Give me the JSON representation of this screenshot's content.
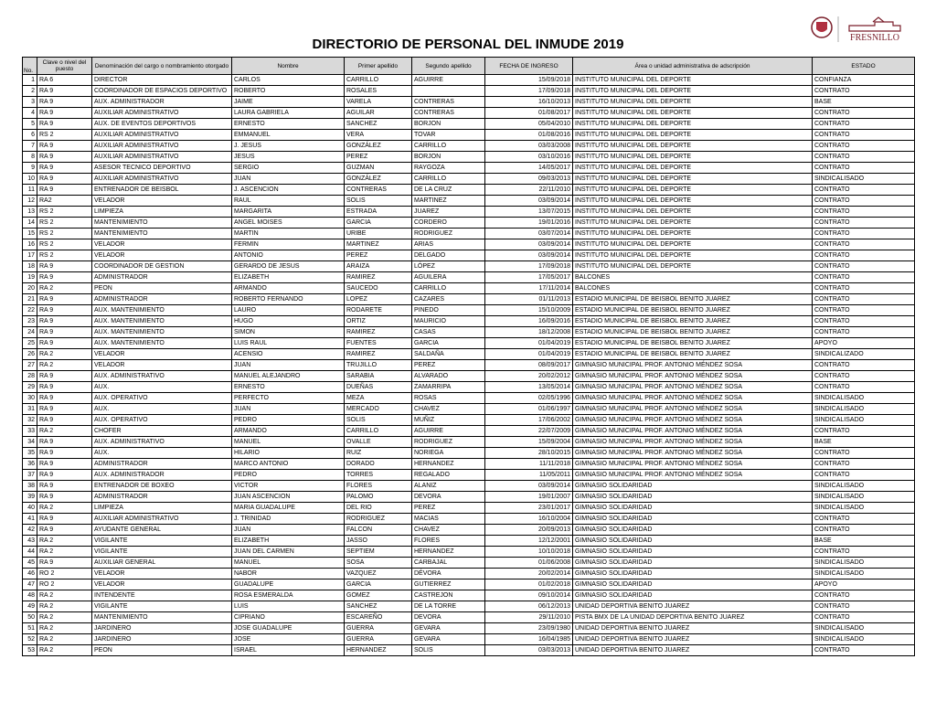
{
  "header": {
    "title": "DIRECTORIO DE PERSONAL DEL INMUDE 2019",
    "logo_text": "FRESNILLO"
  },
  "table": {
    "columns": [
      "No.",
      "Clave o nivel del puesto",
      "Denominación del cargo o nombramiento otorgado",
      "Nombre",
      "Primer apellido",
      "Segundo apellido",
      "FECHA DE INGRESO",
      "Área o unidad administrativa de adscripción",
      "ESTADO"
    ],
    "rows": [
      [
        1,
        "RA 6",
        "DIRECTOR",
        "CARLOS",
        "CARRILLO",
        "AGUIRRE",
        "15/09/2018",
        "INSTITUTO MUNICIPAL DEL DEPORTE",
        "CONFIANZA"
      ],
      [
        2,
        "RA 9",
        "COORDINADOR DE ESPACIOS DEPORTIVO",
        "ROBERTO",
        "ROSALES",
        null,
        "17/09/2018",
        "INSTITUTO MUNICIPAL DEL DEPORTE",
        "CONTRATO"
      ],
      [
        3,
        "RA 9",
        "AUX. ADMINISTRADOR",
        "JAIME",
        "VARELA",
        "CONTRERAS",
        "16/10/2013",
        "INSTITUTO MUNICIPAL DEL DEPORTE",
        "BASE"
      ],
      [
        4,
        "RA 9",
        "AUXILIAR ADMINISTRATIVO",
        "LAURA GABRIELA",
        "AGUILAR",
        "CONTRERAS",
        "01/08/2017",
        "INSTITUTO MUNICIPAL DEL DEPORTE",
        "CONTRATO"
      ],
      [
        5,
        "RA 9",
        "AUX. DE EVENTOS DEPORTIVOS",
        "ERNESTO",
        "SANCHEZ",
        "BORJON",
        "05/04/2010",
        "INSTITUTO MUNICIPAL DEL DEPORTE",
        "CONTRATO"
      ],
      [
        6,
        "RS 2",
        "AUXILIAR ADMINISTRATIVO",
        "EMMANUEL",
        "VERA",
        "TOVAR",
        "01/08/2016",
        "INSTITUTO MUNICIPAL DEL DEPORTE",
        "CONTRATO"
      ],
      [
        7,
        "RA 9",
        "AUXILIAR ADMINISTRATIVO",
        "J. JESUS",
        "GONZÁLEZ",
        "CARRILLO",
        "03/03/2008",
        "INSTITUTO MUNICIPAL DEL DEPORTE",
        "CONTRATO"
      ],
      [
        8,
        "RA 9",
        "AUXILIAR ADMINISTRATIVO",
        "JESUS",
        "PEREZ",
        "BORJON",
        "03/10/2016",
        "INSTITUTO MUNICIPAL DEL DEPORTE",
        "CONTRATO"
      ],
      [
        9,
        "RA 9",
        "ASESOR TECNICO DEPORTIVO",
        "SERGIO",
        "GUZMAN",
        "RAYGOZA",
        "14/05/2017",
        "INSTITUTO MUNICIPAL DEL DEPORTE",
        "CONTRATO"
      ],
      [
        10,
        "RA 9",
        "AUXILIAR ADMINISTRATIVO",
        "JUAN",
        "GONZÁLEZ",
        "CARRILLO",
        "09/03/2013",
        "INSTITUTO MUNICIPAL DEL DEPORTE",
        "SINDICALISADO"
      ],
      [
        11,
        "RA 9",
        "ENTRENADOR DE BEISBOL",
        "J. ASCENCION",
        "CONTRERAS",
        "DE LA CRUZ",
        "22/11/2010",
        "INSTITUTO MUNICIPAL DEL DEPORTE",
        "CONTRATO"
      ],
      [
        12,
        "RA2",
        "VELADOR",
        "RAUL",
        "SOLIS",
        "MARTINEZ",
        "03/09/2014",
        "INSTITUTO MUNICIPAL DEL DEPORTE",
        "CONTRATO"
      ],
      [
        13,
        "RS 2",
        "LIMPIEZA",
        "MARGARITA",
        "ESTRADA",
        "JUAREZ",
        "13/07/2015",
        "INSTITUTO MUNICIPAL DEL DEPORTE",
        "CONTRATO"
      ],
      [
        14,
        "RS 2",
        "MANTENIMIENTO",
        "ANGEL MOISES",
        "GARCIA",
        "CORDERO",
        "19/01/2016",
        "INSTITUTO MUNICIPAL DEL DEPORTE",
        "CONTRATO"
      ],
      [
        15,
        "RS 2",
        "MANTENIMIENTO",
        "MARTIN",
        "URIBE",
        "RODRIGUEZ",
        "03/07/2014",
        "INSTITUTO MUNICIPAL DEL DEPORTE",
        "CONTRATO"
      ],
      [
        16,
        "RS 2",
        "VELADOR",
        "FERMIN",
        "MARTINEZ",
        "ARIAS",
        "03/09/2014",
        "INSTITUTO MUNICIPAL DEL DEPORTE",
        "CONTRATO"
      ],
      [
        17,
        "RS 2",
        "VELADOR",
        "ANTONIO",
        "PEREZ",
        "DELGADO",
        "03/09/2014",
        "INSTITUTO MUNICIPAL DEL DEPORTE",
        "CONTRATO"
      ],
      [
        18,
        "RA 9",
        "COORDINADOR DE GESTION",
        "GERARDO DE JESUS",
        "ARAIZA",
        "LÓPEZ",
        "17/09/2018",
        "INSTITUTO MUNICIPAL DEL DEPORTE",
        "CONTRATO"
      ],
      [
        19,
        "RA 9",
        "ADMINISTRADOR",
        "ELIZABETH",
        "RAMIREZ",
        "AGUILERA",
        "17/05/2017",
        "BALCONES",
        "CONTRATO"
      ],
      [
        20,
        "RA 2",
        "PEON",
        "ARMANDO",
        "SAUCEDO",
        "CARRILLO",
        "17/11/2014",
        "BALCONES",
        "CONTRATO"
      ],
      [
        21,
        "RA 9",
        "ADMINISTRADOR",
        "ROBERTO FERNANDO",
        "LOPEZ",
        "CAZARES",
        "01/11/2013",
        "ESTADIO MUNICIPAL DE BEISBOL BENITO JUAREZ",
        "CONTRATO"
      ],
      [
        22,
        "RA 9",
        "AUX. MANTENIMIENTO",
        "LAURO",
        "RODARETE",
        "PINEDO",
        "15/10/2009",
        "ESTADIO MUNICIPAL DE BEISBOL BENITO JUAREZ",
        "CONTRATO"
      ],
      [
        23,
        "RA 9",
        "AUX. MANTENIMIENTO",
        "HUGO",
        "ORTIZ",
        "MAURICIO",
        "16/09/2016",
        "ESTADIO MUNICIPAL DE BEISBOL BENITO JUAREZ",
        "CONTRATO"
      ],
      [
        24,
        "RA 9",
        "AUX. MANTENIMIENTO",
        "SIMON",
        "RAMIREZ",
        "CASAS",
        "18/12/2008",
        "ESTADIO MUNICIPAL DE BEISBOL BENITO JUAREZ",
        "CONTRATO"
      ],
      [
        25,
        "RA 9",
        "AUX. MANTENIMIENTO",
        "LUIS RAUL",
        "FUENTES",
        "GARCIA",
        "01/04/2019",
        "ESTADIO MUNICIPAL DE BEISBOL BENITO JUAREZ",
        "APOYO"
      ],
      [
        26,
        "RA 2",
        "VELADOR",
        "ACENSIO",
        "RAMIREZ",
        "SALDAÑA",
        "01/04/2019",
        "ESTADIO MUNICIPAL DE BEISBOL BENITO JUAREZ",
        "SINDICALIZADO"
      ],
      [
        27,
        "RA 2",
        "VELADOR",
        "JUAN",
        "TRUJILLO",
        "PEREZ",
        "08/09/2017",
        "GIMNASIO MUNICIPAL PROF. ANTONIO MÉNDEZ SOSA",
        "CONTRATO"
      ],
      [
        28,
        "RA 9",
        "AUX. ADMINISTRATIVO",
        "MANUEL ALEJANDRO",
        "SARABIA",
        "ALVARADO",
        "20/02/2012",
        "GIMNASIO MUNICIPAL PROF. ANTONIO MÉNDEZ SOSA",
        "CONTRATO"
      ],
      [
        29,
        "RA 9",
        "AUX.",
        "ERNESTO",
        "DUEÑAS",
        "ZAMARRIPA",
        "13/05/2014",
        "GIMNASIO MUNICIPAL PROF. ANTONIO MÉNDEZ SOSA",
        "CONTRATO"
      ],
      [
        30,
        "RA 9",
        "AUX. OPERATIVO",
        "PERFECTO",
        "MEZA",
        "ROSAS",
        "02/05/1996",
        "GIMNASIO MUNICIPAL PROF. ANTONIO MÉNDEZ SOSA",
        "SINDICALISADO"
      ],
      [
        31,
        "RA 9",
        "AUX.",
        "JUAN",
        "MERCADO",
        "CHAVEZ",
        "01/06/1997",
        "GIMNASIO MUNICIPAL PROF. ANTONIO MÉNDEZ SOSA",
        "SINDICALISADO"
      ],
      [
        32,
        "RA 9",
        "AUX. OPERATIVO",
        "PEDRO",
        "SOLIS",
        "MUÑIZ",
        "17/06/2002",
        "GIMNASIO MUNICIPAL PROF. ANTONIO MÉNDEZ SOSA",
        "SINDICALISADO"
      ],
      [
        33,
        "RA 2",
        "CHOFER",
        "ARMANDO",
        "CARRILLO",
        "AGUIRRE",
        "22/07/2009",
        "GIMNASIO MUNICIPAL PROF. ANTONIO MÉNDEZ SOSA",
        "CONTRATO"
      ],
      [
        34,
        "RA 9",
        "AUX. ADMINISTRATIVO",
        "MANUEL",
        "OVALLE",
        "RODRIGUEZ",
        "15/09/2004",
        "GIMNASIO MUNICIPAL PROF. ANTONIO MÉNDEZ SOSA",
        "BASE"
      ],
      [
        35,
        "RA 9",
        "AUX.",
        "HILARIO",
        "RUIZ",
        "NORIEGA",
        "28/10/2015",
        "GIMNASIO MUNICIPAL PROF. ANTONIO MÉNDEZ SOSA",
        "CONTRATO"
      ],
      [
        36,
        "RA 9",
        "ADMINISTRADOR",
        "MARCO ANTONIO",
        "DORADO",
        "HERNANDEZ",
        "11/11/2018",
        "GIMNASIO MUNICIPAL PROF. ANTONIO MÉNDEZ SOSA",
        "CONTRATO"
      ],
      [
        37,
        "RA 9",
        "AUX. ADMINISTRADOR",
        "PEDRO",
        "TORRES",
        "REGALADO",
        "11/05/2011",
        "GIMNASIO MUNICIPAL PROF. ANTONIO MÉNDEZ SOSA",
        "CONTRATO"
      ],
      [
        38,
        "RA 9",
        "ENTRENADOR DE BOXEO",
        "VICTOR",
        "FLORES",
        "ALANIZ",
        "03/09/2014",
        "GIMNASIO SOLIDARIDAD",
        "SINDICALISADO"
      ],
      [
        39,
        "RA 9",
        "ADMINISTRADOR",
        "JUAN ASCENCION",
        "PALOMO",
        "DEVORA",
        "19/01/2007",
        "GIMNASIO SOLIDARIDAD",
        "SINDICALISADO"
      ],
      [
        40,
        "RA 2",
        "LIMPIEZA",
        "MARIA GUADALUPE",
        "DEL RIO",
        "PEREZ",
        "23/01/2017",
        "GIMNASIO SOLIDARIDAD",
        "SINDICALISADO"
      ],
      [
        41,
        "RA 9",
        "AUXILIAR ADMINISTRATIVO",
        "J. TRINIDAD",
        "RODRIGUEZ",
        "MACIAS",
        "16/10/2004",
        "GIMNASIO SOLIDARIDAD",
        "CONTRATO"
      ],
      [
        42,
        "RA 9",
        "AYUDANTE GENERAL",
        "JUAN",
        "FALCON",
        "CHAVEZ",
        "20/09/2013",
        "GIMNASIO SOLIDARIDAD",
        "CONTRATO"
      ],
      [
        43,
        "RA 2",
        "VIGILANTE",
        "ELIZABETH",
        "JASSO",
        "FLORES",
        "12/12/2001",
        "GIMNASIO SOLIDARIDAD",
        "BASE"
      ],
      [
        44,
        "RA 2",
        "VIGILANTE",
        "JUAN DEL CARMEN",
        "SEPTIEM",
        "HERNANDEZ",
        "10/10/2018",
        "GIMNASIO SOLIDARIDAD",
        "CONTRATO"
      ],
      [
        45,
        "RA 9",
        "AUXILIAR GENERAL",
        "MANUEL",
        "SOSA",
        "CARBAJAL",
        "01/06/2008",
        "GIMNASIO SOLIDARIDAD",
        "SINDICALISADO"
      ],
      [
        46,
        "RO 2",
        "VELADOR",
        "NABOR",
        "VAZQUEZ",
        "DÉVORA",
        "20/02/2014",
        "GIMNASIO SOLIDARIDAD",
        "SINDICALISADO"
      ],
      [
        47,
        "RO 2",
        "VELADOR",
        "GUADALUPE",
        "GARCIA",
        "GUTIERREZ",
        "01/02/2018",
        "GIMNASIO SOLIDARIDAD",
        "APOYO"
      ],
      [
        48,
        "RA 2",
        "INTENDENTE",
        "ROSA ESMERALDA",
        "GOMEZ",
        "CASTREJON",
        "09/10/2014",
        "GIMNASIO SOLIDARIDAD",
        "CONTRATO"
      ],
      [
        49,
        "RA 2",
        "VIGILANTE",
        "LUIS",
        "SANCHEZ",
        "DE LA TORRE",
        "06/12/2013",
        "UNIDAD DEPORTIVA BENITO JUAREZ",
        "CONTRATO"
      ],
      [
        50,
        "RA 2",
        "MANTENIMIENTO",
        "CIPRIANO",
        "ESCAREÑO",
        "DEVORA",
        "29/11/2010",
        "PISTA BMX DE LA UNIDAD DEPORTIVA BENITO JUAREZ",
        "CONTRATO"
      ],
      [
        51,
        "RA 2",
        "JARDINERO",
        "JOSE GUADALUPE",
        "GUERRA",
        "GEVARA",
        "23/09/1980",
        "UNIDAD DEPORTIVA BENITO JUAREZ",
        "SINDICALISADO"
      ],
      [
        52,
        "RA 2",
        "JARDINERO",
        "JOSE",
        "GUERRA",
        "GEVARA",
        "16/04/1985",
        "UNIDAD DEPORTIVA BENITO JUAREZ",
        "SINDICALISADO"
      ],
      [
        53,
        "RA 2",
        "PEON",
        "ISRAEL",
        "HERNANDEZ",
        "SOLIS",
        "03/03/2013",
        "UNIDAD DEPORTIVA BENITO JUAREZ",
        "CONTRATO"
      ]
    ]
  }
}
